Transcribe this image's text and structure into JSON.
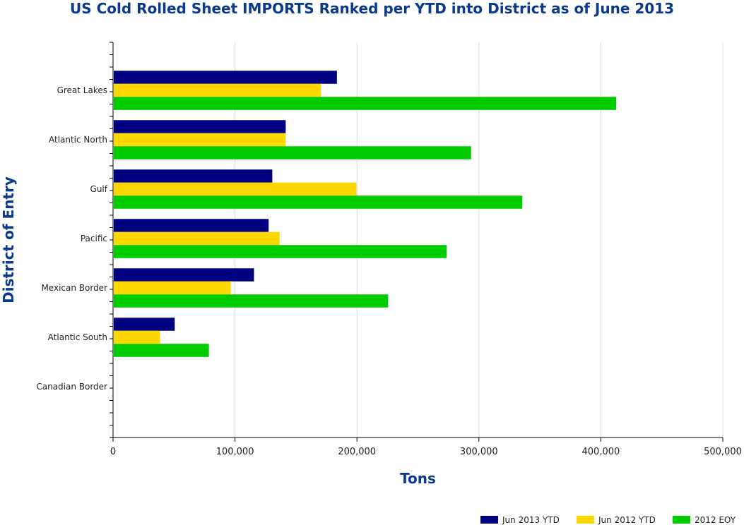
{
  "chart_data": {
    "type": "bar",
    "orientation": "horizontal",
    "title": "US Cold Rolled Sheet IMPORTS Ranked per YTD into District as of June 2013",
    "xlabel": "Tons",
    "ylabel": "District of Entry",
    "xlim": [
      0,
      500000
    ],
    "xticks": [
      "0",
      "100,000",
      "200,000",
      "300,000",
      "400,000",
      "500,000"
    ],
    "grid": "vertical",
    "legend": "bottom-right",
    "categories": [
      "Great Lakes",
      "Atlantic North",
      "Gulf",
      "Pacific",
      "Mexican Border",
      "Atlantic South",
      "Canadian Border"
    ],
    "series": [
      {
        "name": "Jun 2013 YTD",
        "color": "#000080",
        "values": [
          183000,
          141000,
          130000,
          127000,
          115000,
          50000,
          0
        ]
      },
      {
        "name": "Jun 2012 YTD",
        "color": "#ffd700",
        "values": [
          170000,
          141000,
          199000,
          136000,
          96000,
          38000,
          0
        ]
      },
      {
        "name": "2012 EOY",
        "color": "#00cc00",
        "values": [
          412000,
          293000,
          335000,
          273000,
          225000,
          78000,
          0
        ]
      }
    ]
  }
}
